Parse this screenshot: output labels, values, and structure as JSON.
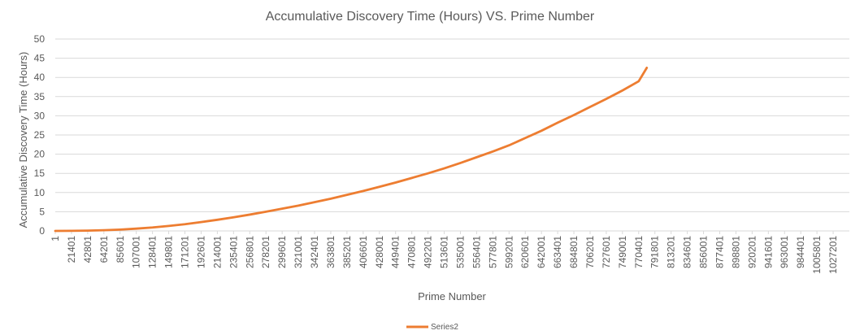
{
  "chart_data": {
    "type": "line",
    "title": "Accumulative Discovery Time (Hours) VS. Prime Number",
    "xlabel": "Prime Number",
    "ylabel": "Accumulative Discovery Time (Hours)",
    "ylim": [
      0,
      50
    ],
    "y_ticks": [
      0,
      5,
      10,
      15,
      20,
      25,
      30,
      35,
      40,
      45,
      50
    ],
    "x_tick_labels": [
      "1",
      "21401",
      "42801",
      "64201",
      "85601",
      "107001",
      "128401",
      "149801",
      "171201",
      "192601",
      "214001",
      "235401",
      "256801",
      "278201",
      "299601",
      "321001",
      "342401",
      "363801",
      "385201",
      "406601",
      "428001",
      "449401",
      "470801",
      "492201",
      "513601",
      "535001",
      "556401",
      "577801",
      "599201",
      "620601",
      "642001",
      "663401",
      "684801",
      "706201",
      "727601",
      "749001",
      "770401",
      "791801",
      "813201",
      "834601",
      "856001",
      "877401",
      "898801",
      "920201",
      "941601",
      "963001",
      "984401",
      "1005801",
      "1027201"
    ],
    "xlim": [
      1,
      1048601
    ],
    "grid": true,
    "legend_position": "bottom",
    "series": [
      {
        "name": "Series2",
        "color": "#ED7D31",
        "x": [
          1,
          21401,
          42801,
          64201,
          85601,
          107001,
          128401,
          149801,
          171201,
          192601,
          214001,
          235401,
          256801,
          278201,
          299601,
          321001,
          342401,
          363801,
          385201,
          406601,
          428001,
          449401,
          470801,
          492201,
          513601,
          535001,
          556401,
          577801,
          599201,
          620601,
          642001,
          663401,
          684801,
          706201,
          727601,
          749001,
          770401,
          781101
        ],
        "values": [
          0,
          0.02,
          0.08,
          0.18,
          0.35,
          0.6,
          0.9,
          1.3,
          1.75,
          2.3,
          2.9,
          3.55,
          4.25,
          5.0,
          5.8,
          6.6,
          7.5,
          8.4,
          9.4,
          10.4,
          11.5,
          12.6,
          13.8,
          15.0,
          16.3,
          17.7,
          19.2,
          20.7,
          22.3,
          24.2,
          26.1,
          28.2,
          30.2,
          32.3,
          34.4,
          36.6,
          39.0,
          42.5
        ]
      }
    ]
  }
}
